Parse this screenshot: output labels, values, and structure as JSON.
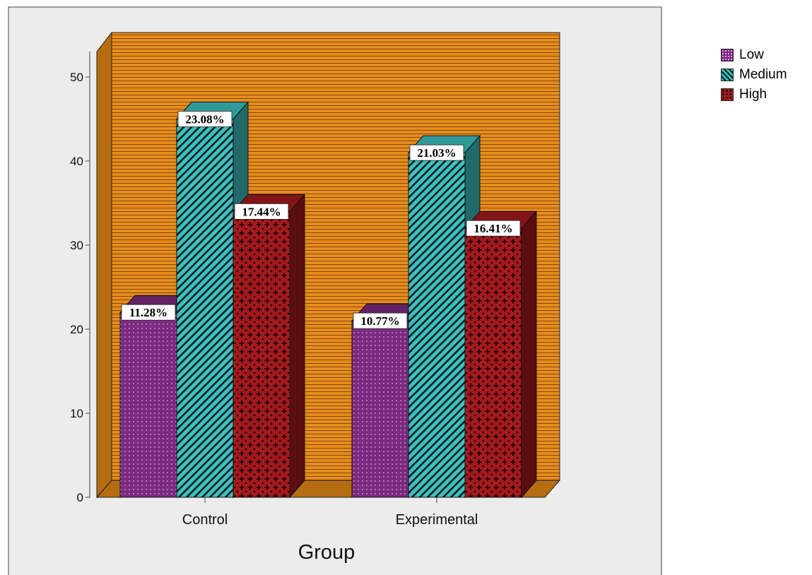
{
  "chart_data": {
    "type": "bar",
    "categories": [
      "Control",
      "Experimental"
    ],
    "series": [
      {
        "name": "Low",
        "values": [
          22,
          21
        ],
        "labels": [
          "11.28%",
          "10.77%"
        ],
        "color": "#7b2a80",
        "pattern": "dots"
      },
      {
        "name": "Medium",
        "values": [
          45,
          41
        ],
        "labels": [
          "23.08%",
          "21.03%"
        ],
        "color": "#3dc0bf",
        "pattern": "diagonal"
      },
      {
        "name": "High",
        "values": [
          34,
          32
        ],
        "labels": [
          "17.44%",
          "16.41%"
        ],
        "color": "#a51a1d",
        "pattern": "cross"
      }
    ],
    "y_ticks": [
      0,
      10,
      20,
      30,
      40,
      50
    ],
    "ylim": [
      0,
      55
    ],
    "xlabel": "Group",
    "ylabel": "",
    "legend_position": "right",
    "colors": {
      "background_outer": "#ececec",
      "wall": "#e58d1e",
      "wall_lines": "#8a4a0b",
      "floor": "#b56d12"
    }
  }
}
